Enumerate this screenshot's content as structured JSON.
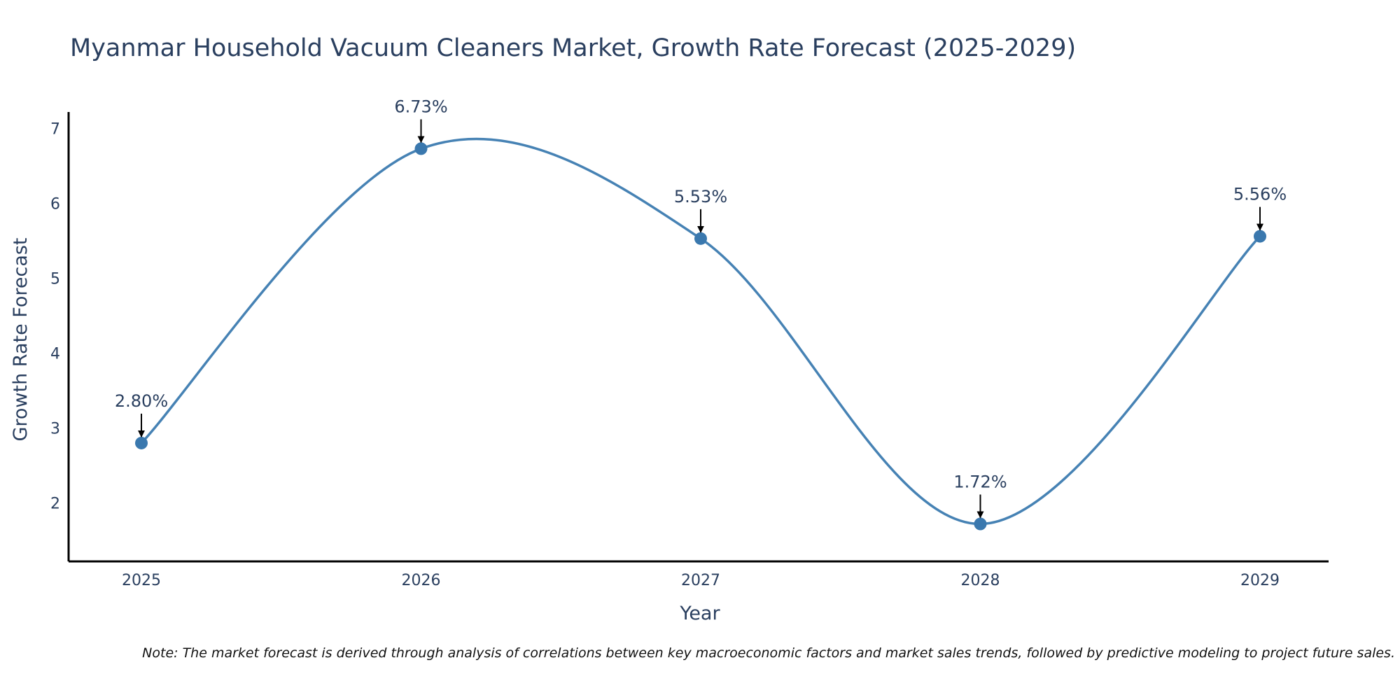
{
  "chart_data": {
    "type": "line",
    "title": "Myanmar Household Vacuum Cleaners Market, Growth Rate Forecast (2025-2029)",
    "xlabel": "Year",
    "ylabel": "Growth Rate Forecast",
    "categories": [
      "2025",
      "2026",
      "2027",
      "2028",
      "2029"
    ],
    "values": [
      2.8,
      6.73,
      5.53,
      1.72,
      5.56
    ],
    "data_labels": [
      "2.80%",
      "6.73%",
      "5.53%",
      "1.72%",
      "5.56%"
    ],
    "yticks": [
      2,
      3,
      4,
      5,
      6,
      7
    ],
    "ylim": [
      1.22,
      7.22
    ],
    "line_shape": "spline",
    "markers": true,
    "grid": false,
    "legend": "none",
    "colors": {
      "line": "#4682b4",
      "marker": "#3a78ae",
      "arrow": "#000000",
      "axis": "#000000",
      "text": "#2a3f5f"
    }
  },
  "note": "Note: The market forecast is derived through analysis of correlations between key macroeconomic factors and market sales trends, followed by predictive modeling to project future sales."
}
